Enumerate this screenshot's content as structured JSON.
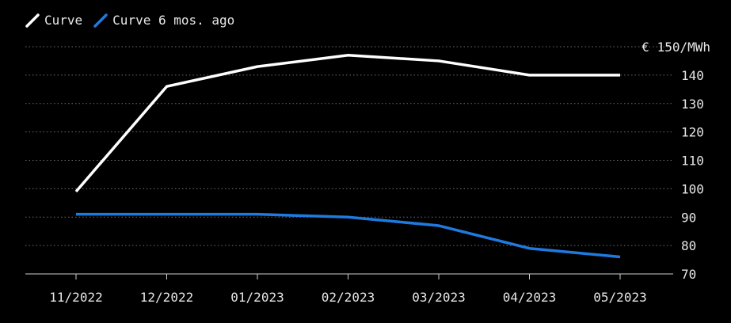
{
  "chart_data": {
    "type": "line",
    "categories": [
      "11/2022",
      "12/2022",
      "01/2023",
      "02/2023",
      "03/2023",
      "04/2023",
      "05/2023"
    ],
    "series": [
      {
        "name": "Curve",
        "color": "#ffffff",
        "values": [
          99,
          136,
          143,
          147,
          145,
          140,
          140
        ]
      },
      {
        "name": "Curve 6 mos. ago",
        "color": "#1f7ae0",
        "values": [
          91,
          91,
          91,
          90,
          87,
          79,
          76
        ]
      }
    ],
    "y_unit_label": "€ 150/MWh",
    "yticks": [
      70,
      80,
      90,
      100,
      110,
      120,
      130,
      140
    ],
    "ylim": [
      70,
      150
    ],
    "grid": true,
    "legend_position": "top-left",
    "background": "#000000",
    "grid_color": "#6e6e6e"
  }
}
